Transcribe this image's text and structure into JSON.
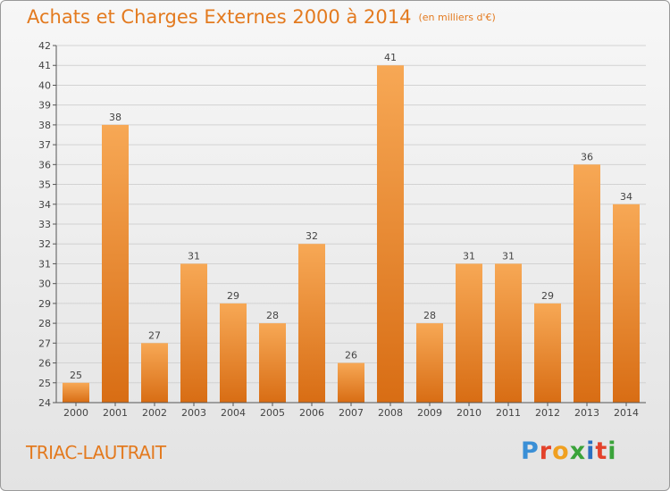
{
  "header": {
    "title": "Achats et Charges Externes 2000 à 2014",
    "unit": "(en milliers d'€)"
  },
  "footer": {
    "place": "TRIAC-LAUTRAIT",
    "logo": "Proxiti",
    "logo_colors": [
      "#3a8fd6",
      "#e3422b",
      "#f0a020",
      "#3aa33a",
      "#2a6fc0",
      "#e3422b",
      "#3aa33a"
    ]
  },
  "colors": {
    "bar_top": "#f7a855",
    "bar_bottom": "#d86d14",
    "grid": "#d2d2d2",
    "axis": "#555555",
    "text": "#444444",
    "accent": "#e37a1f"
  },
  "chart_data": {
    "type": "bar",
    "title": "Achats et Charges Externes 2000 à 2014",
    "subtitle": "(en milliers d'€)",
    "categories": [
      "2000",
      "2001",
      "2002",
      "2003",
      "2004",
      "2005",
      "2006",
      "2007",
      "2008",
      "2009",
      "2010",
      "2011",
      "2012",
      "2013",
      "2014"
    ],
    "values": [
      25,
      38,
      27,
      31,
      29,
      28,
      32,
      26,
      41,
      28,
      31,
      31,
      29,
      36,
      34
    ],
    "ylim": [
      24,
      42
    ],
    "yticks": [
      24,
      25,
      26,
      27,
      28,
      29,
      30,
      31,
      32,
      33,
      34,
      35,
      36,
      37,
      38,
      39,
      40,
      41,
      42
    ],
    "grid": true,
    "legend": "none"
  }
}
